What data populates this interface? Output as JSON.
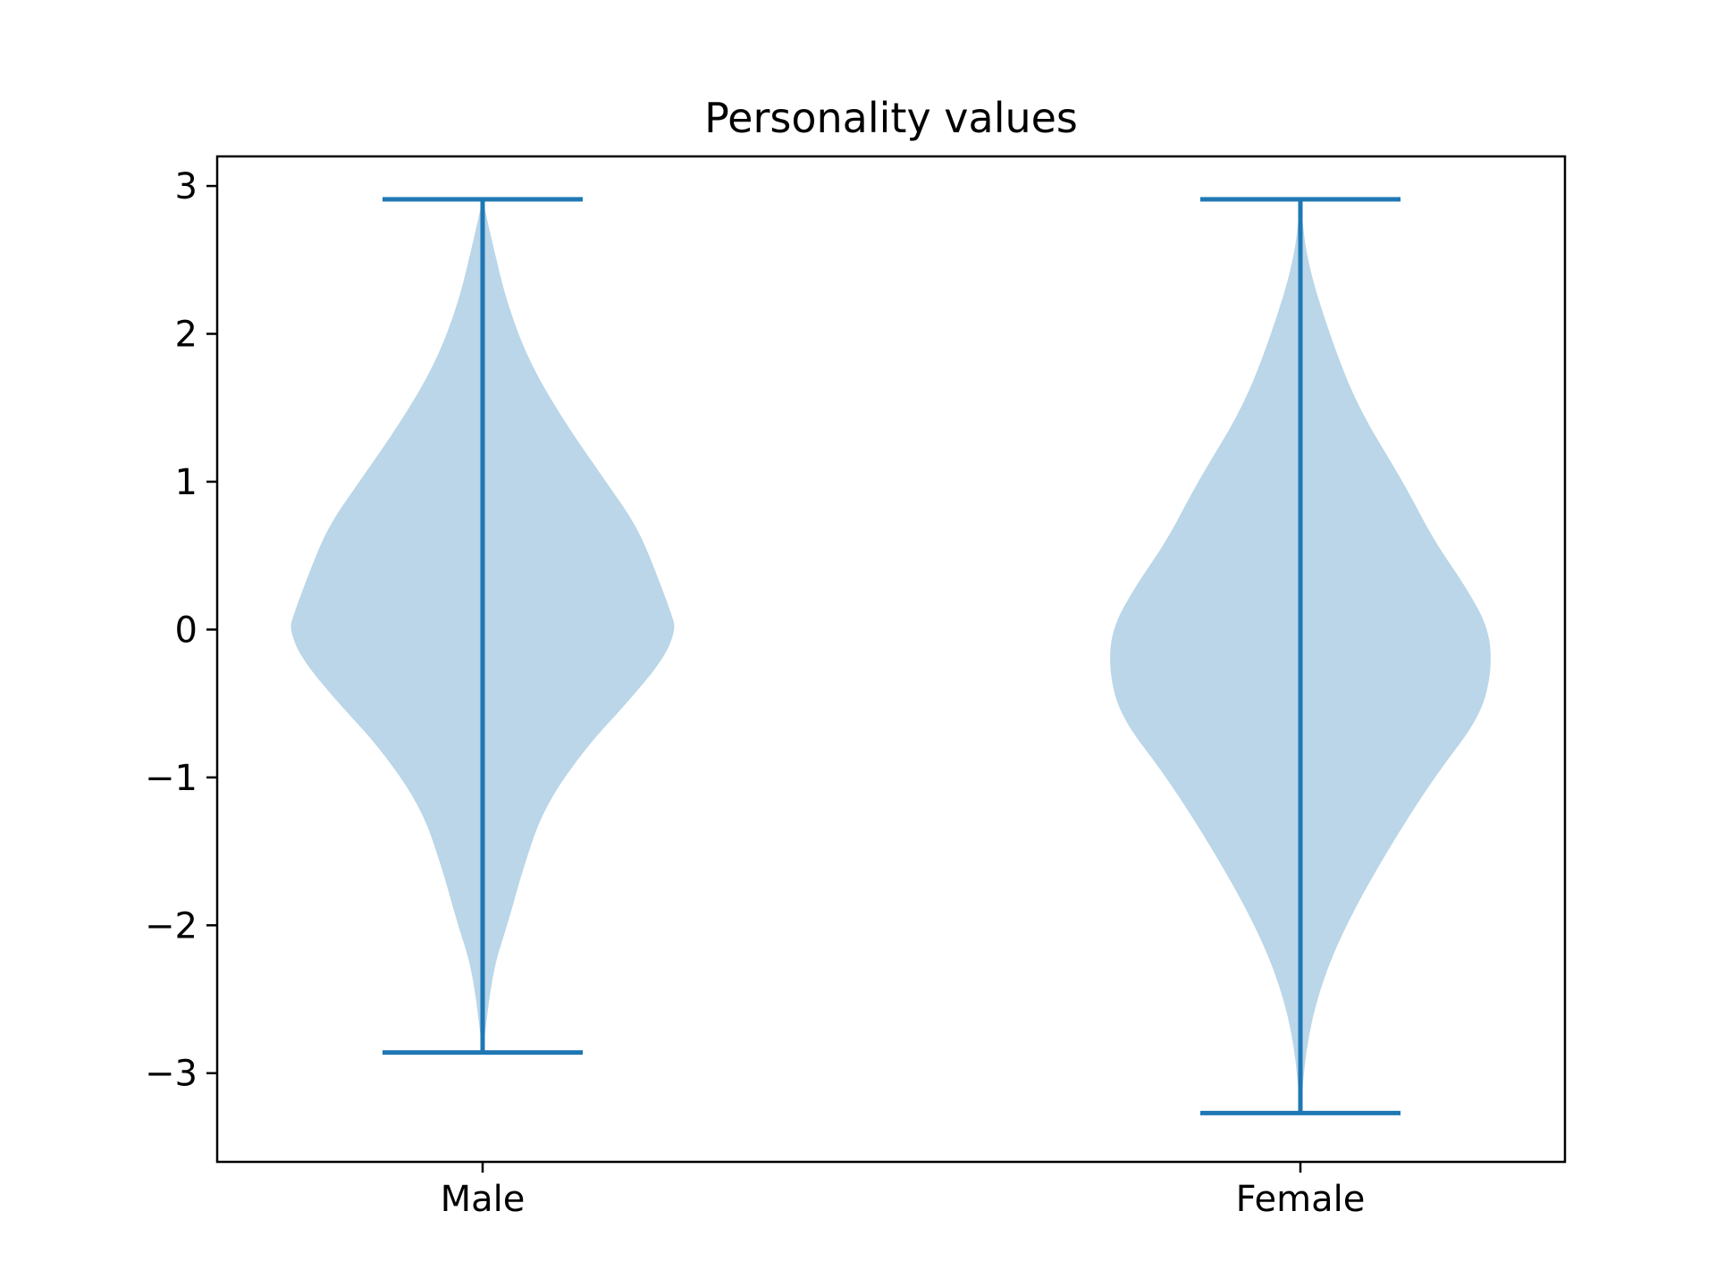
{
  "chart_data": {
    "type": "violin",
    "title": "Personality values",
    "xlabel": "",
    "ylabel": "",
    "categories": [
      "Male",
      "Female"
    ],
    "ylim": [
      -3.6,
      3.2
    ],
    "yticks": [
      3,
      2,
      1,
      0,
      -1,
      -2,
      -3
    ],
    "ytick_labels": [
      "3",
      "2",
      "1",
      "0",
      "−1",
      "−2",
      "−3"
    ],
    "grid": false,
    "legend": "none",
    "colors": {
      "violin_fill": "#bad6e8",
      "violin_line": "#1f77b4",
      "axes": "#000000"
    },
    "violins": [
      {
        "category": "Male",
        "min": -2.86,
        "max": 2.91,
        "density_profile": [
          [
            2.91,
            0.0
          ],
          [
            2.6,
            0.05
          ],
          [
            2.2,
            0.12
          ],
          [
            1.8,
            0.23
          ],
          [
            1.4,
            0.4
          ],
          [
            1.0,
            0.6
          ],
          [
            0.7,
            0.75
          ],
          [
            0.4,
            0.84
          ],
          [
            0.1,
            0.92
          ],
          [
            0.0,
            0.94
          ],
          [
            -0.2,
            0.88
          ],
          [
            -0.5,
            0.7
          ],
          [
            -0.8,
            0.5
          ],
          [
            -1.2,
            0.3
          ],
          [
            -1.6,
            0.2
          ],
          [
            -2.0,
            0.12
          ],
          [
            -2.3,
            0.05
          ],
          [
            -2.86,
            0.0
          ]
        ]
      },
      {
        "category": "Female",
        "min": -3.27,
        "max": 2.91,
        "density_profile": [
          [
            2.91,
            0.0
          ],
          [
            2.5,
            0.03
          ],
          [
            2.0,
            0.14
          ],
          [
            1.5,
            0.28
          ],
          [
            1.0,
            0.5
          ],
          [
            0.6,
            0.65
          ],
          [
            0.3,
            0.8
          ],
          [
            0.0,
            0.92
          ],
          [
            -0.3,
            0.93
          ],
          [
            -0.6,
            0.87
          ],
          [
            -1.0,
            0.65
          ],
          [
            -1.5,
            0.42
          ],
          [
            -2.0,
            0.22
          ],
          [
            -2.4,
            0.1
          ],
          [
            -2.8,
            0.03
          ],
          [
            -3.27,
            0.0
          ]
        ]
      }
    ]
  }
}
